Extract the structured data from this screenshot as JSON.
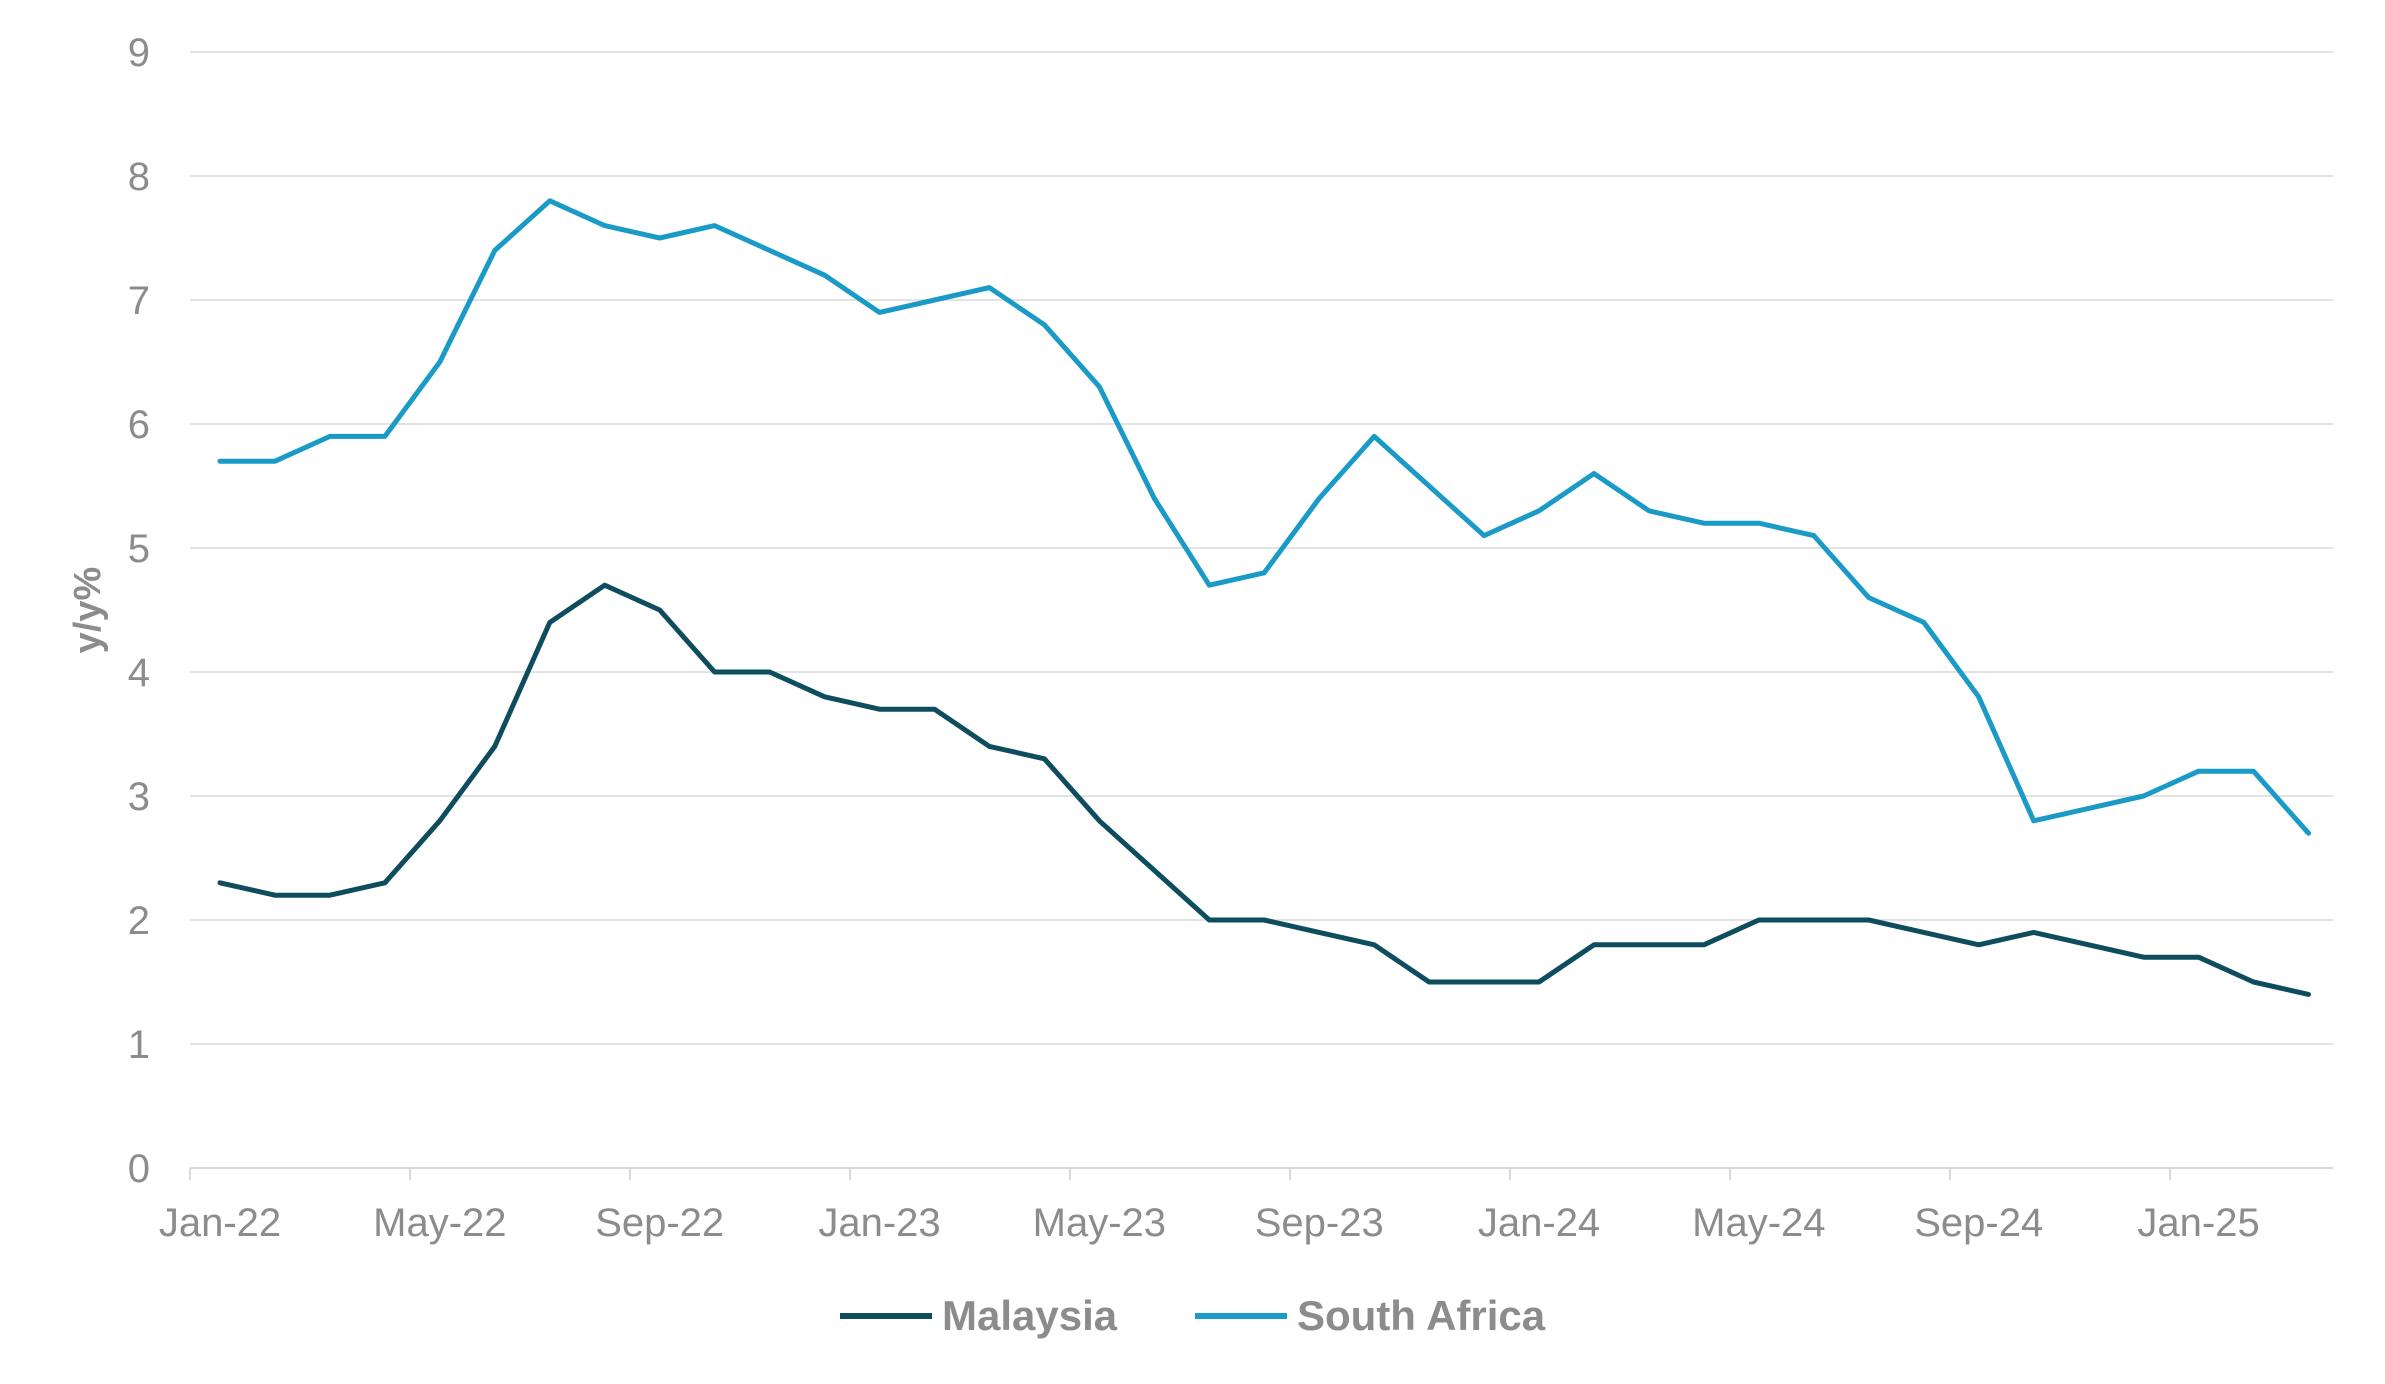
{
  "chart_data": {
    "type": "line",
    "title": "",
    "xlabel": "",
    "ylabel": "y/y%",
    "ylim": [
      0,
      9
    ],
    "yticks": [
      0,
      1,
      2,
      3,
      4,
      5,
      6,
      7,
      8,
      9
    ],
    "grid": true,
    "legend_position": "bottom-center",
    "x_tick_labels": [
      "Jan-22",
      "May-22",
      "Sep-22",
      "Jan-23",
      "May-23",
      "Sep-23",
      "Jan-24",
      "May-24",
      "Sep-24",
      "Jan-25"
    ],
    "categories": [
      "Jan-22",
      "Feb-22",
      "Mar-22",
      "Apr-22",
      "May-22",
      "Jun-22",
      "Jul-22",
      "Aug-22",
      "Sep-22",
      "Oct-22",
      "Nov-22",
      "Dec-22",
      "Jan-23",
      "Feb-23",
      "Mar-23",
      "Apr-23",
      "May-23",
      "Jun-23",
      "Jul-23",
      "Aug-23",
      "Sep-23",
      "Oct-23",
      "Nov-23",
      "Dec-23",
      "Jan-24",
      "Feb-24",
      "Mar-24",
      "Apr-24",
      "May-24",
      "Jun-24",
      "Jul-24",
      "Aug-24",
      "Sep-24",
      "Oct-24",
      "Nov-24",
      "Dec-24",
      "Jan-25",
      "Feb-25",
      "Mar-25"
    ],
    "series": [
      {
        "name": "Malaysia",
        "color": "#0d4d5e",
        "values": [
          2.3,
          2.2,
          2.2,
          2.3,
          2.8,
          3.4,
          4.4,
          4.7,
          4.5,
          4.0,
          4.0,
          3.8,
          3.7,
          3.7,
          3.4,
          3.3,
          2.8,
          2.4,
          2.0,
          2.0,
          1.9,
          1.8,
          1.5,
          1.5,
          1.5,
          1.8,
          1.8,
          1.8,
          2.0,
          2.0,
          2.0,
          1.9,
          1.8,
          1.9,
          1.8,
          1.7,
          1.7,
          1.5,
          1.4
        ]
      },
      {
        "name": "South Africa",
        "color": "#1a9ac6",
        "values": [
          5.7,
          5.7,
          5.9,
          5.9,
          6.5,
          7.4,
          7.8,
          7.6,
          7.5,
          7.6,
          7.4,
          7.2,
          6.9,
          7.0,
          7.1,
          6.8,
          6.3,
          5.4,
          4.7,
          4.8,
          5.4,
          5.9,
          5.5,
          5.1,
          5.3,
          5.6,
          5.3,
          5.2,
          5.2,
          5.1,
          4.6,
          4.4,
          3.8,
          2.8,
          2.9,
          3.0,
          3.2,
          3.2,
          2.7
        ]
      }
    ]
  }
}
